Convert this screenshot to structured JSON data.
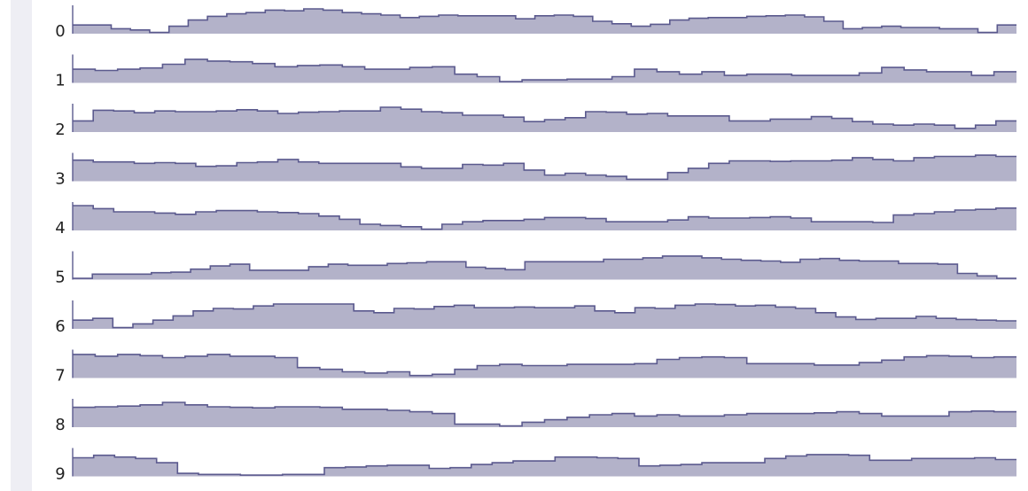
{
  "chart_data": {
    "type": "area",
    "step": true,
    "row_labels": [
      "0",
      "1",
      "2",
      "3",
      "4",
      "5",
      "6",
      "7",
      "8",
      "9"
    ],
    "series": [
      {
        "values": [
          0.35,
          0.35,
          0.2,
          0.15,
          0.05,
          0.3,
          0.55,
          0.7,
          0.8,
          0.85,
          0.95,
          0.92,
          1.0,
          0.95,
          0.85,
          0.8,
          0.75,
          0.65,
          0.7,
          0.75,
          0.72,
          0.72,
          0.72,
          0.6,
          0.72,
          0.75,
          0.7,
          0.5,
          0.4,
          0.3,
          0.38,
          0.55,
          0.62,
          0.65,
          0.65,
          0.7,
          0.72,
          0.75,
          0.68,
          0.5,
          0.2,
          0.25,
          0.3,
          0.25,
          0.25,
          0.2,
          0.2,
          0.05,
          0.35
        ]
      },
      {
        "values": [
          0.55,
          0.5,
          0.55,
          0.6,
          0.75,
          0.95,
          0.88,
          0.85,
          0.78,
          0.65,
          0.7,
          0.72,
          0.65,
          0.55,
          0.55,
          0.62,
          0.65,
          0.35,
          0.25,
          0.05,
          0.12,
          0.12,
          0.15,
          0.15,
          0.25,
          0.55,
          0.45,
          0.35,
          0.45,
          0.3,
          0.35,
          0.35,
          0.3,
          0.3,
          0.3,
          0.4,
          0.62,
          0.52,
          0.45,
          0.45,
          0.3,
          0.45
        ]
      },
      {
        "values": [
          0.45,
          0.88,
          0.85,
          0.78,
          0.85,
          0.82,
          0.82,
          0.85,
          0.9,
          0.85,
          0.75,
          0.8,
          0.82,
          0.85,
          0.85,
          1.0,
          0.92,
          0.82,
          0.78,
          0.68,
          0.68,
          0.6,
          0.42,
          0.5,
          0.58,
          0.82,
          0.8,
          0.72,
          0.75,
          0.65,
          0.65,
          0.65,
          0.45,
          0.45,
          0.52,
          0.52,
          0.62,
          0.55,
          0.42,
          0.32,
          0.28,
          0.32,
          0.28,
          0.15,
          0.28,
          0.45
        ]
      },
      {
        "values": [
          0.85,
          0.78,
          0.78,
          0.72,
          0.75,
          0.72,
          0.6,
          0.62,
          0.75,
          0.78,
          0.88,
          0.78,
          0.72,
          0.72,
          0.72,
          0.72,
          0.58,
          0.52,
          0.52,
          0.68,
          0.65,
          0.72,
          0.45,
          0.25,
          0.32,
          0.25,
          0.2,
          0.08,
          0.08,
          0.35,
          0.52,
          0.72,
          0.82,
          0.82,
          0.8,
          0.82,
          0.82,
          0.85,
          0.95,
          0.88,
          0.82,
          0.95,
          1.0,
          1.0,
          1.05,
          1.0
        ]
      },
      {
        "values": [
          1.0,
          0.88,
          0.75,
          0.75,
          0.7,
          0.65,
          0.75,
          0.8,
          0.8,
          0.75,
          0.72,
          0.68,
          0.58,
          0.45,
          0.25,
          0.2,
          0.15,
          0.05,
          0.25,
          0.35,
          0.4,
          0.4,
          0.45,
          0.52,
          0.52,
          0.48,
          0.35,
          0.35,
          0.35,
          0.42,
          0.55,
          0.5,
          0.5,
          0.52,
          0.55,
          0.5,
          0.35,
          0.35,
          0.35,
          0.32,
          0.62,
          0.68,
          0.75,
          0.82,
          0.85,
          0.9
        ]
      },
      {
        "values": [
          0.05,
          0.22,
          0.22,
          0.22,
          0.28,
          0.3,
          0.42,
          0.55,
          0.62,
          0.38,
          0.38,
          0.38,
          0.52,
          0.62,
          0.58,
          0.58,
          0.65,
          0.68,
          0.72,
          0.72,
          0.5,
          0.45,
          0.4,
          0.72,
          0.72,
          0.72,
          0.72,
          0.82,
          0.82,
          0.88,
          0.95,
          0.95,
          0.88,
          0.82,
          0.78,
          0.75,
          0.7,
          0.82,
          0.85,
          0.78,
          0.75,
          0.75,
          0.65,
          0.65,
          0.62,
          0.25,
          0.15,
          0.05
        ]
      },
      {
        "values": [
          0.35,
          0.42,
          0.05,
          0.2,
          0.35,
          0.52,
          0.72,
          0.82,
          0.8,
          0.92,
          1.0,
          1.0,
          1.0,
          1.0,
          0.72,
          0.65,
          0.82,
          0.8,
          0.9,
          0.95,
          0.85,
          0.85,
          0.88,
          0.85,
          0.85,
          0.92,
          0.72,
          0.65,
          0.85,
          0.82,
          0.95,
          1.0,
          0.98,
          0.92,
          0.95,
          0.88,
          0.82,
          0.65,
          0.48,
          0.38,
          0.42,
          0.42,
          0.5,
          0.42,
          0.38,
          0.35,
          0.32
        ]
      },
      {
        "values": [
          0.95,
          0.88,
          0.95,
          0.9,
          0.82,
          0.88,
          0.95,
          0.88,
          0.88,
          0.82,
          0.42,
          0.35,
          0.25,
          0.2,
          0.25,
          0.1,
          0.15,
          0.35,
          0.5,
          0.55,
          0.5,
          0.5,
          0.55,
          0.55,
          0.55,
          0.58,
          0.75,
          0.82,
          0.85,
          0.82,
          0.58,
          0.58,
          0.58,
          0.52,
          0.52,
          0.62,
          0.72,
          0.85,
          0.9,
          0.88,
          0.82,
          0.85
        ]
      },
      {
        "values": [
          0.8,
          0.82,
          0.85,
          0.9,
          1.0,
          0.9,
          0.82,
          0.8,
          0.78,
          0.82,
          0.82,
          0.8,
          0.72,
          0.72,
          0.68,
          0.62,
          0.55,
          0.12,
          0.12,
          0.05,
          0.2,
          0.3,
          0.4,
          0.5,
          0.55,
          0.45,
          0.5,
          0.45,
          0.45,
          0.5,
          0.55,
          0.55,
          0.55,
          0.58,
          0.62,
          0.55,
          0.45,
          0.45,
          0.45,
          0.62,
          0.65,
          0.62
        ]
      },
      {
        "values": [
          0.75,
          0.85,
          0.78,
          0.72,
          0.55,
          0.12,
          0.08,
          0.08,
          0.05,
          0.05,
          0.08,
          0.08,
          0.35,
          0.38,
          0.42,
          0.45,
          0.45,
          0.32,
          0.35,
          0.48,
          0.55,
          0.62,
          0.62,
          0.78,
          0.78,
          0.75,
          0.72,
          0.42,
          0.45,
          0.48,
          0.55,
          0.55,
          0.55,
          0.72,
          0.82,
          0.88,
          0.88,
          0.85,
          0.65,
          0.65,
          0.72,
          0.72,
          0.72,
          0.75,
          0.68
        ]
      }
    ],
    "colors": {
      "fill": "#b3b2c9",
      "stroke": "#5b5a8e",
      "label": "#222222",
      "strip": "#eeeef4"
    }
  }
}
